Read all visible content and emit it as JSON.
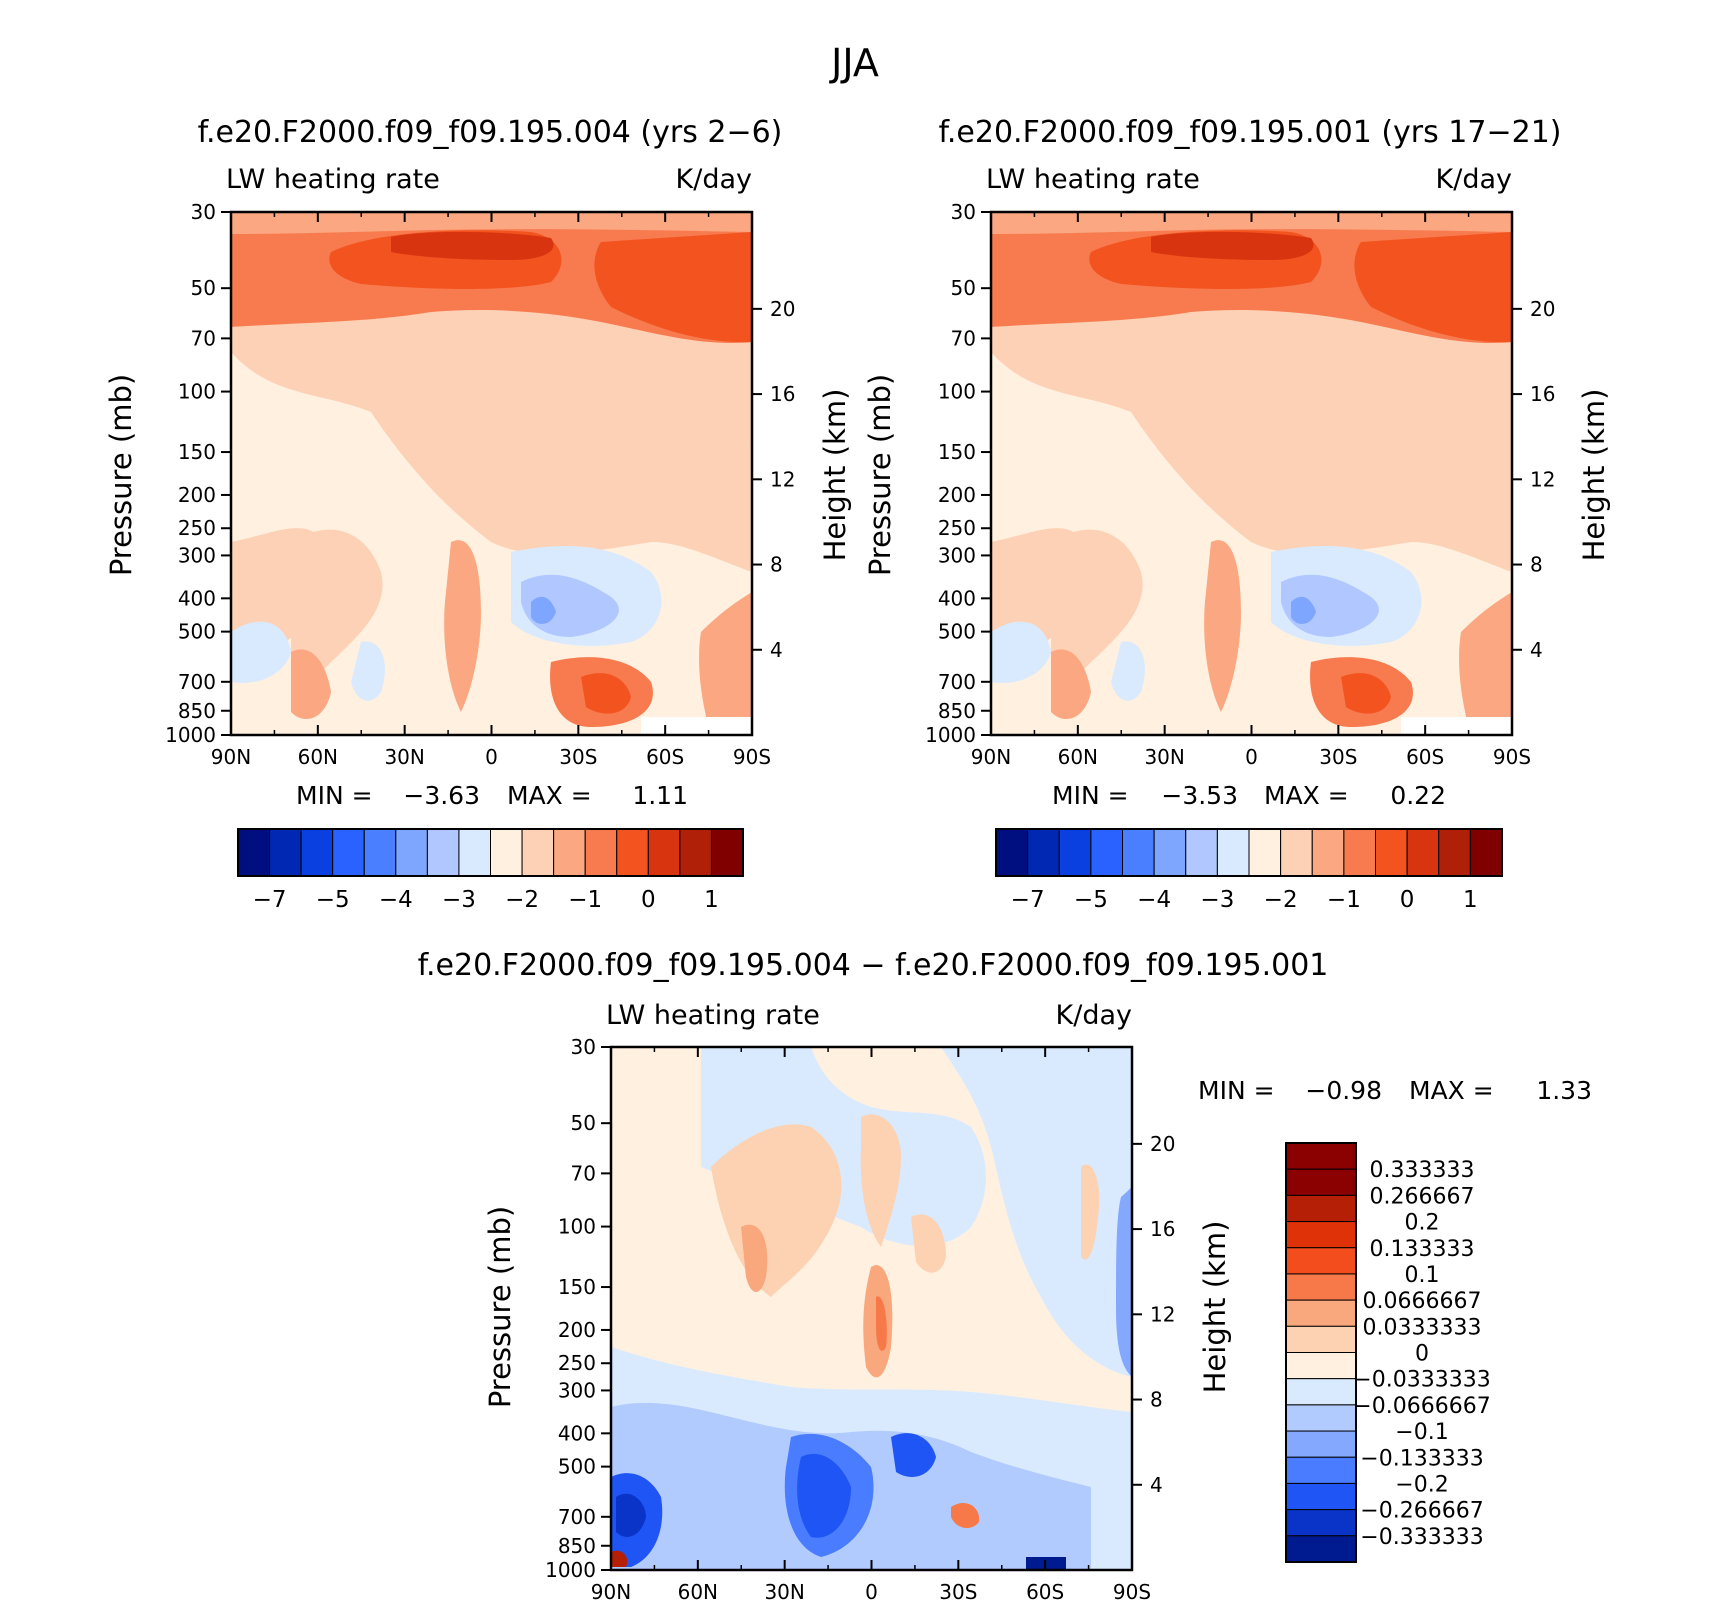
{
  "page_title": "JJA",
  "colors": {
    "main_scale": [
      "#000f80",
      "#0028b3",
      "#0a3fe0",
      "#2a62ff",
      "#4a80ff",
      "#7fa6ff",
      "#b0c8ff",
      "#d9eaff",
      "#fff0e0",
      "#fdd1b5",
      "#fba882",
      "#f77b4f",
      "#f3531f",
      "#d83410",
      "#b01f08",
      "#800000"
    ],
    "diff_scale": [
      "#8b0000",
      "#b51f05",
      "#e03208",
      "#f44d1d",
      "#f7794a",
      "#f9a77c",
      "#fcd2b2",
      "#fff0e0",
      "#d9eaff",
      "#b2cbff",
      "#85a8ff",
      "#4a7cff",
      "#1f55f5",
      "#0a34c8",
      "#001a90"
    ]
  },
  "panels": [
    {
      "title": "f.e20.F2000.f09_f09.195.004 (yrs 2−6)",
      "variable": "LW heating rate",
      "units": "K/day",
      "min_label": "MIN =",
      "min_value": "−3.63",
      "max_label": "MAX =",
      "max_value": "1.11",
      "ylabel": "Pressure (mb)",
      "ylabel_right": "Height (km)",
      "colorbar_ticks": [
        "−7",
        "−5",
        "−4",
        "−3",
        "−2",
        "−1",
        "0",
        "1"
      ]
    },
    {
      "title": "f.e20.F2000.f09_f09.195.001 (yrs 17−21)",
      "variable": "LW heating rate",
      "units": "K/day",
      "min_label": "MIN =",
      "min_value": "−3.53",
      "max_label": "MAX =",
      "max_value": "0.22",
      "ylabel": "Pressure (mb)",
      "ylabel_right": "Height (km)",
      "colorbar_ticks": [
        "−7",
        "−5",
        "−4",
        "−3",
        "−2",
        "−1",
        "0",
        "1"
      ]
    },
    {
      "title": "f.e20.F2000.f09_f09.195.004 − f.e20.F2000.f09_f09.195.001",
      "variable": "LW heating rate",
      "units": "K/day",
      "min_label": "MIN =",
      "min_value": "−0.98",
      "max_label": "MAX =",
      "max_value": "1.33",
      "ylabel": "Pressure (mb)",
      "ylabel_right": "Height (km)",
      "colorbar_labels": [
        "0.333333",
        "0.266667",
        "0.2",
        "0.133333",
        "0.1",
        "0.0666667",
        "0.0333333",
        "0",
        "−0.0333333",
        "−0.0666667",
        "−0.1",
        "−0.133333",
        "−0.2",
        "−0.266667",
        "−0.333333"
      ]
    }
  ],
  "chart_data": [
    {
      "type": "contour",
      "title": "f.e20.F2000.f09_f09.195.004 (yrs 2−6)",
      "x_ticks": [
        "90N",
        "60N",
        "30N",
        "0",
        "30S",
        "60S",
        "90S"
      ],
      "x_values": [
        90,
        60,
        30,
        0,
        -30,
        -60,
        -90
      ],
      "y_ticks": [
        "30",
        "50",
        "70",
        "100",
        "150",
        "200",
        "250",
        "300",
        "400",
        "500",
        "700",
        "850",
        "1000"
      ],
      "y_values_mb": [
        30,
        50,
        70,
        100,
        150,
        200,
        250,
        300,
        400,
        500,
        700,
        850,
        1000
      ],
      "height_ticks_km": [
        "20",
        "16",
        "12",
        "8",
        "4"
      ],
      "ylim_mb": [
        1000,
        30
      ],
      "contour_levels": [
        -7,
        -6,
        -5,
        -4.5,
        -4,
        -3.5,
        -3,
        -2.5,
        -2,
        -1.5,
        -1,
        -0.5,
        0,
        0.5,
        1
      ],
      "min": -3.63,
      "max": 1.11
    },
    {
      "type": "contour",
      "title": "f.e20.F2000.f09_f09.195.001 (yrs 17−21)",
      "x_ticks": [
        "90N",
        "60N",
        "30N",
        "0",
        "30S",
        "60S",
        "90S"
      ],
      "x_values": [
        90,
        60,
        30,
        0,
        -30,
        -60,
        -90
      ],
      "y_ticks": [
        "30",
        "50",
        "70",
        "100",
        "150",
        "200",
        "250",
        "300",
        "400",
        "500",
        "700",
        "850",
        "1000"
      ],
      "y_values_mb": [
        30,
        50,
        70,
        100,
        150,
        200,
        250,
        300,
        400,
        500,
        700,
        850,
        1000
      ],
      "height_ticks_km": [
        "20",
        "16",
        "12",
        "8",
        "4"
      ],
      "ylim_mb": [
        1000,
        30
      ],
      "contour_levels": [
        -7,
        -6,
        -5,
        -4.5,
        -4,
        -3.5,
        -3,
        -2.5,
        -2,
        -1.5,
        -1,
        -0.5,
        0,
        0.5,
        1
      ],
      "min": -3.53,
      "max": 0.22
    },
    {
      "type": "contour",
      "title": "f.e20.F2000.f09_f09.195.004 − f.e20.F2000.f09_f09.195.001",
      "x_ticks": [
        "90N",
        "60N",
        "30N",
        "0",
        "30S",
        "60S",
        "90S"
      ],
      "x_values": [
        90,
        60,
        30,
        0,
        -30,
        -60,
        -90
      ],
      "y_ticks": [
        "30",
        "50",
        "70",
        "100",
        "150",
        "200",
        "250",
        "300",
        "400",
        "500",
        "700",
        "850",
        "1000"
      ],
      "y_values_mb": [
        30,
        50,
        70,
        100,
        150,
        200,
        250,
        300,
        400,
        500,
        700,
        850,
        1000
      ],
      "height_ticks_km": [
        "20",
        "16",
        "12",
        "8",
        "4"
      ],
      "ylim_mb": [
        1000,
        30
      ],
      "contour_levels": [
        -0.333333,
        -0.266667,
        -0.2,
        -0.133333,
        -0.1,
        -0.0666667,
        -0.0333333,
        0,
        0.0333333,
        0.0666667,
        0.1,
        0.133333,
        0.2,
        0.266667,
        0.333333
      ],
      "min": -0.98,
      "max": 1.33
    }
  ]
}
